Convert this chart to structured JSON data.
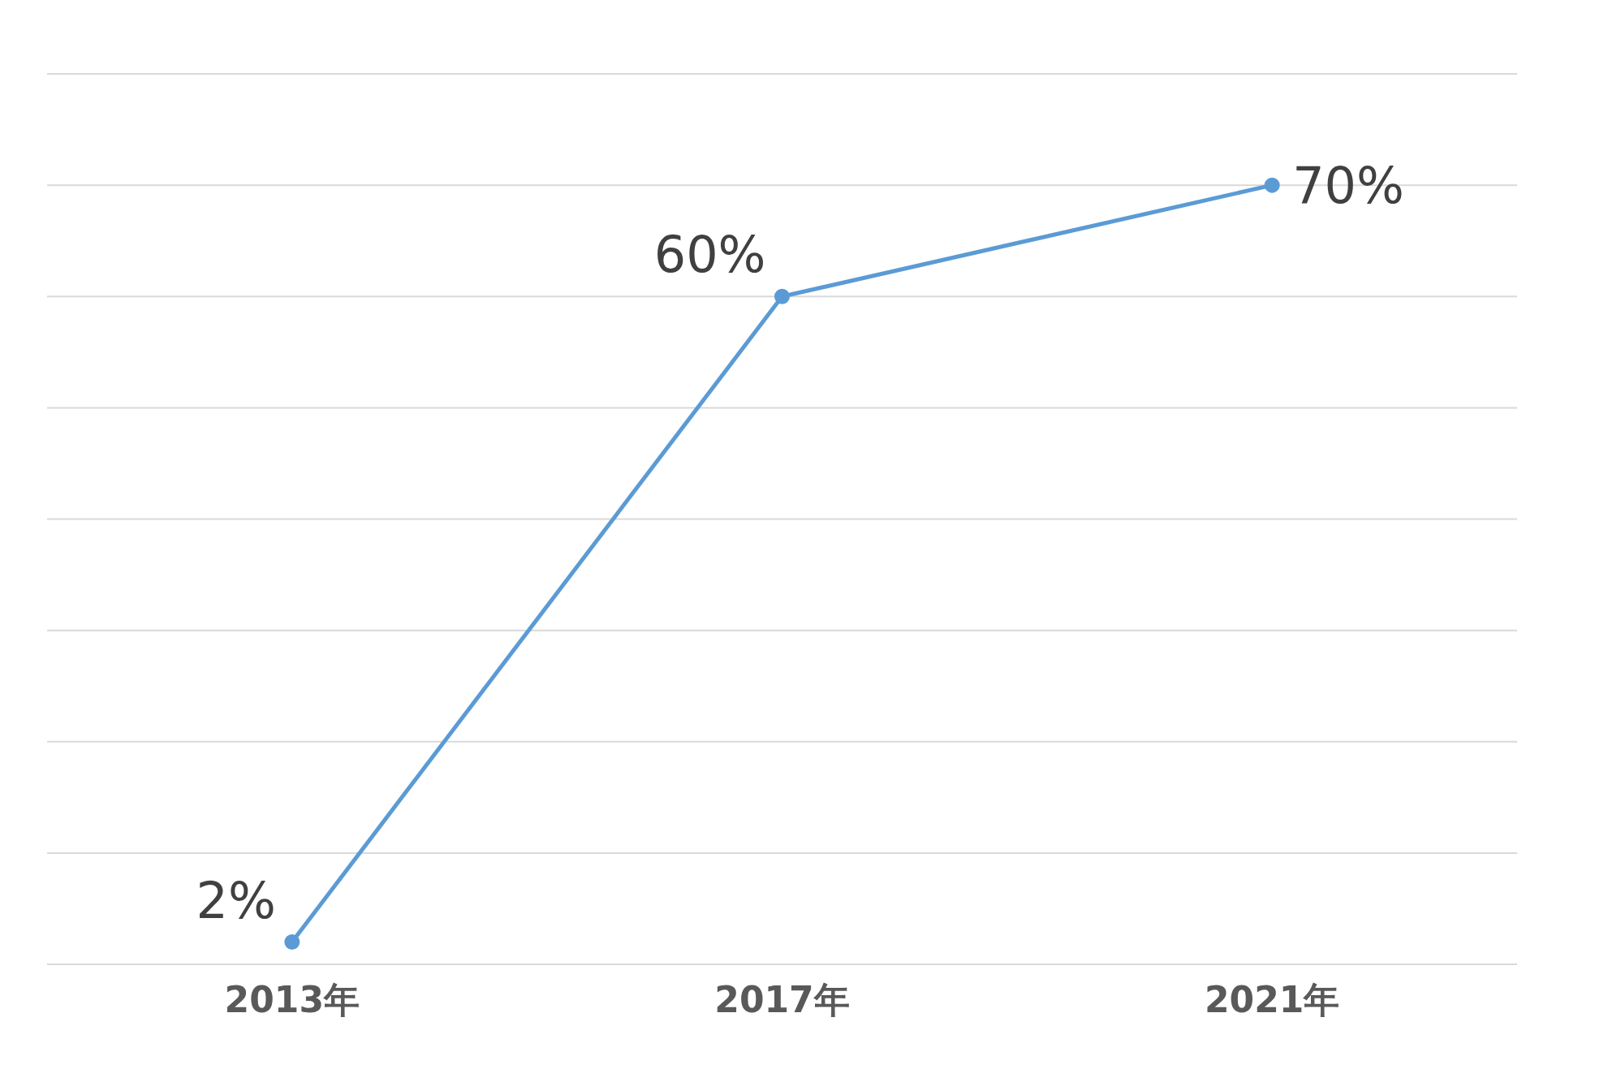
{
  "chart_data": {
    "type": "line",
    "categories": [
      "2013年",
      "2017年",
      "2021年"
    ],
    "series": [
      {
        "color": "#5b9bd5",
        "values": [
          2,
          60,
          70
        ],
        "value_labels": [
          "2%",
          "60%",
          "70%"
        ]
      }
    ],
    "ylim": [
      0,
      80
    ],
    "yticks": [
      {
        "value": 0,
        "label": null
      },
      {
        "value": 10,
        "label": null
      },
      {
        "value": 20,
        "label": null
      },
      {
        "value": 30,
        "label": null
      },
      {
        "value": 40,
        "label": null
      },
      {
        "value": 50,
        "label": null
      },
      {
        "value": 60,
        "label": null
      },
      {
        "value": 70,
        "label": null
      },
      {
        "value": 80,
        "label": null
      }
    ],
    "grid": "y",
    "tick_labels": "x",
    "marker": "circle",
    "line_style": "solid",
    "legend": false
  }
}
